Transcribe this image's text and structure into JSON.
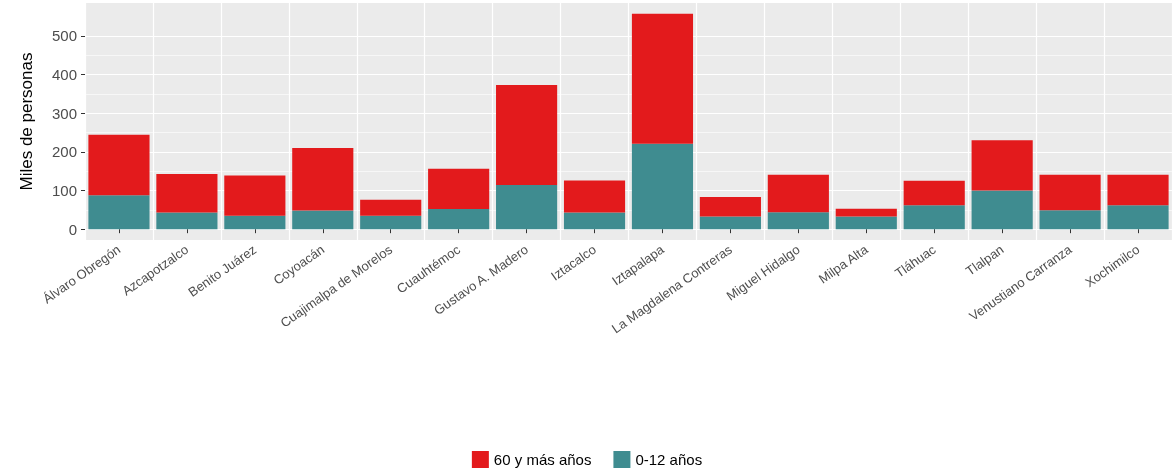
{
  "chart_data": {
    "type": "bar",
    "stacked": true,
    "ylabel": "Miles de personas",
    "categories": [
      "Álvaro Obregón",
      "Azcapotzalco",
      "Benito Juárez",
      "Coyoacán",
      "Cuajimalpa de Morelos",
      "Cuauhtémoc",
      "Gustavo A. Madero",
      "Iztacalco",
      "Iztapalapa",
      "La Magdalena Contreras",
      "Miguel Hidalgo",
      "Milpa Alta",
      "Tláhuac",
      "Tlalpan",
      "Venustiano Carranza",
      "Xochimilco"
    ],
    "series": [
      {
        "name": "0-12 años",
        "color": "#3f8c90",
        "values": [
          88,
          43,
          35,
          48,
          35,
          52,
          114,
          43,
          221,
          33,
          44,
          33,
          62,
          100,
          49,
          62
        ]
      },
      {
        "name": "60 y más años",
        "color": "#e31a1c",
        "values": [
          156,
          100,
          104,
          162,
          41,
          104,
          259,
          83,
          336,
          50,
          97,
          20,
          63,
          130,
          92,
          79
        ]
      }
    ],
    "ylim": [
      -28,
      585
    ],
    "yticks": [
      0,
      100,
      200,
      300,
      400,
      500
    ],
    "grid": true,
    "legend": "bottom"
  }
}
